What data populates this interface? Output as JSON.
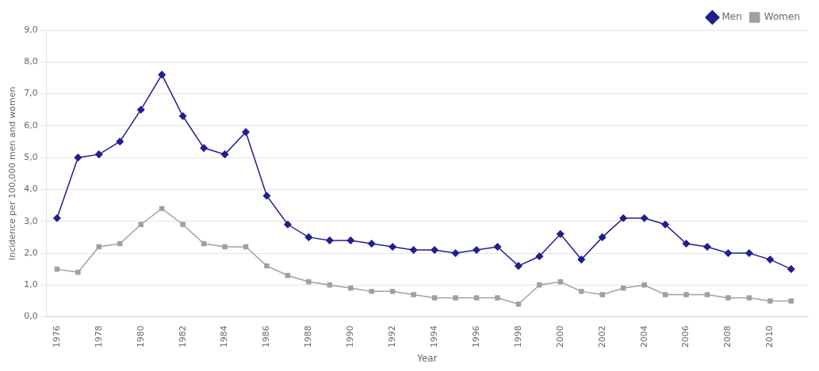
{
  "chart_data": {
    "type": "line",
    "x": [
      1976,
      1977,
      1978,
      1979,
      1980,
      1981,
      1982,
      1983,
      1984,
      1985,
      1986,
      1987,
      1988,
      1989,
      1990,
      1991,
      1992,
      1993,
      1994,
      1995,
      1996,
      1997,
      1998,
      1999,
      2000,
      2001,
      2002,
      2003,
      2004,
      2005,
      2006,
      2007,
      2008,
      2009,
      2010,
      2011
    ],
    "series": [
      {
        "name": "Men",
        "color": "#1f1f8f",
        "marker": "diamond",
        "values": [
          3.1,
          5.0,
          5.1,
          5.5,
          6.5,
          7.6,
          6.3,
          5.3,
          5.1,
          5.8,
          3.8,
          2.9,
          2.5,
          2.4,
          2.4,
          2.3,
          2.2,
          2.1,
          2.1,
          2.0,
          2.1,
          2.2,
          1.6,
          1.9,
          2.6,
          1.8,
          2.5,
          3.1,
          3.1,
          2.9,
          2.3,
          2.2,
          2.0,
          2.0,
          1.8,
          1.5
        ]
      },
      {
        "name": "Women",
        "color": "#a0a0a0",
        "marker": "square",
        "values": [
          1.5,
          1.4,
          2.2,
          2.3,
          2.9,
          3.4,
          2.9,
          2.3,
          2.2,
          2.2,
          1.6,
          1.3,
          1.1,
          1.0,
          0.9,
          0.8,
          0.8,
          0.7,
          0.6,
          0.6,
          0.6,
          0.6,
          0.4,
          1.0,
          1.1,
          0.8,
          0.7,
          0.9,
          1.0,
          0.7,
          0.7,
          0.7,
          0.6,
          0.6,
          0.5,
          0.5
        ]
      }
    ],
    "xlabel": "Year",
    "ylabel": "Incidence per 100,000 men and women",
    "xlim": [
      1975.5,
      2011.8
    ],
    "xticks": [
      1976,
      1978,
      1980,
      1982,
      1984,
      1986,
      1988,
      1990,
      1992,
      1994,
      1996,
      1998,
      2000,
      2002,
      2004,
      2006,
      2008,
      2010
    ],
    "ylim": [
      0.0,
      9.0
    ],
    "yticks": [
      {
        "value": 0,
        "label": "0,0"
      },
      {
        "value": 1,
        "label": "1,0"
      },
      {
        "value": 2,
        "label": "2,0"
      },
      {
        "value": 3,
        "label": "3,0"
      },
      {
        "value": 4,
        "label": "4,0"
      },
      {
        "value": 5,
        "label": "5,0"
      },
      {
        "value": 6,
        "label": "6,0"
      },
      {
        "value": 7,
        "label": "7,0"
      },
      {
        "value": 8,
        "label": "8,0"
      },
      {
        "value": 9,
        "label": "9,0"
      }
    ],
    "grid": true,
    "legend": "upper right"
  }
}
